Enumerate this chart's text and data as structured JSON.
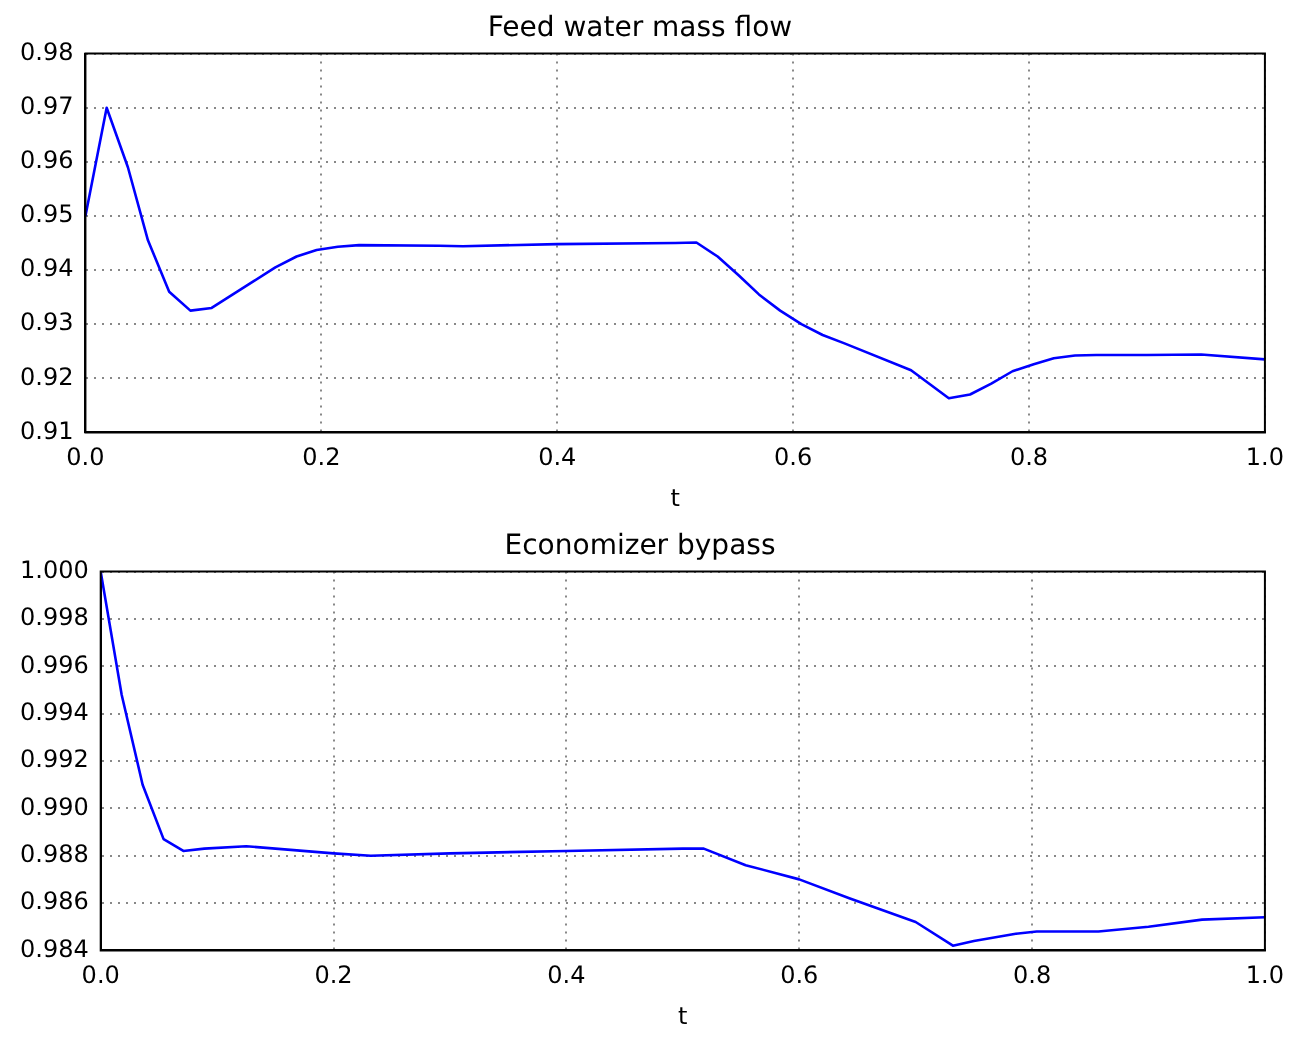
{
  "chart_data": [
    {
      "type": "line",
      "title": "Feed water mass flow",
      "xlabel": "t",
      "xlim": [
        0,
        1
      ],
      "xticks": [
        {
          "value": 0,
          "label": "0.0"
        },
        {
          "value": 0.2,
          "label": "0.2"
        },
        {
          "value": 0.4,
          "label": "0.4"
        },
        {
          "value": 0.6,
          "label": "0.6"
        },
        {
          "value": 0.8,
          "label": "0.8"
        },
        {
          "value": 1,
          "label": "1.0"
        }
      ],
      "ylim": [
        0.91,
        0.98
      ],
      "yticks": [
        0.91,
        0.92,
        0.93,
        0.94,
        0.95,
        0.96,
        0.97,
        0.98
      ],
      "grid": true,
      "legend": false,
      "marker": "none",
      "line_style": "solid",
      "series": [
        {
          "color": "#0000ff",
          "x": [
            0,
            0.018,
            0.036,
            0.053,
            0.071,
            0.089,
            0.107,
            0.125,
            0.143,
            0.161,
            0.179,
            0.196,
            0.214,
            0.232,
            0.3,
            0.32,
            0.4,
            0.5,
            0.518,
            0.536,
            0.554,
            0.571,
            0.589,
            0.607,
            0.625,
            0.643,
            0.7,
            0.732,
            0.75,
            0.768,
            0.786,
            0.804,
            0.821,
            0.839,
            0.857,
            0.9,
            0.946,
            1.0
          ],
          "values": [
            0.95,
            0.97,
            0.959,
            0.9455,
            0.936,
            0.9325,
            0.933,
            0.9355,
            0.938,
            0.9405,
            0.9425,
            0.9437,
            0.9443,
            0.9446,
            0.9445,
            0.9444,
            0.9448,
            0.945,
            0.9451,
            0.9425,
            0.939,
            0.9355,
            0.9325,
            0.93,
            0.928,
            0.9265,
            0.9215,
            0.9163,
            0.917,
            0.919,
            0.9213,
            0.9226,
            0.9237,
            0.9242,
            0.9243,
            0.9243,
            0.9244,
            0.9235
          ]
        }
      ]
    },
    {
      "type": "line",
      "title": "Economizer bypass",
      "xlabel": "t",
      "xlim": [
        0,
        1
      ],
      "xticks": [
        {
          "value": 0,
          "label": "0.0"
        },
        {
          "value": 0.2,
          "label": "0.2"
        },
        {
          "value": 0.4,
          "label": "0.4"
        },
        {
          "value": 0.6,
          "label": "0.6"
        },
        {
          "value": 0.8,
          "label": "0.8"
        },
        {
          "value": 1,
          "label": "1.0"
        }
      ],
      "ylim": [
        0.984,
        1.0
      ],
      "yticks": [
        {
          "value": 0.984,
          "label": "0.984"
        },
        {
          "value": 0.986,
          "label": "0.986"
        },
        {
          "value": 0.988,
          "label": "0.988"
        },
        {
          "value": 0.99,
          "label": "0.990"
        },
        {
          "value": 0.992,
          "label": "0.992"
        },
        {
          "value": 0.994,
          "label": "0.994"
        },
        {
          "value": 0.996,
          "label": "0.996"
        },
        {
          "value": 0.998,
          "label": "0.998"
        },
        {
          "value": 1.0,
          "label": "1.000"
        }
      ],
      "grid": true,
      "legend": false,
      "marker": "none",
      "line_style": "solid",
      "series": [
        {
          "color": "#0000ff",
          "x": [
            0,
            0.018,
            0.036,
            0.054,
            0.071,
            0.089,
            0.125,
            0.2,
            0.232,
            0.3,
            0.4,
            0.5,
            0.518,
            0.554,
            0.6,
            0.643,
            0.7,
            0.732,
            0.75,
            0.786,
            0.804,
            0.857,
            0.9,
            0.946,
            1.0
          ],
          "values": [
            1.0,
            0.9948,
            0.991,
            0.9887,
            0.9882,
            0.9883,
            0.9884,
            0.9881,
            0.988,
            0.9881,
            0.9882,
            0.9883,
            0.9883,
            0.9876,
            0.987,
            0.9862,
            0.9852,
            0.9842,
            0.9844,
            0.9847,
            0.9848,
            0.9848,
            0.985,
            0.9853,
            0.9854
          ]
        }
      ]
    }
  ]
}
